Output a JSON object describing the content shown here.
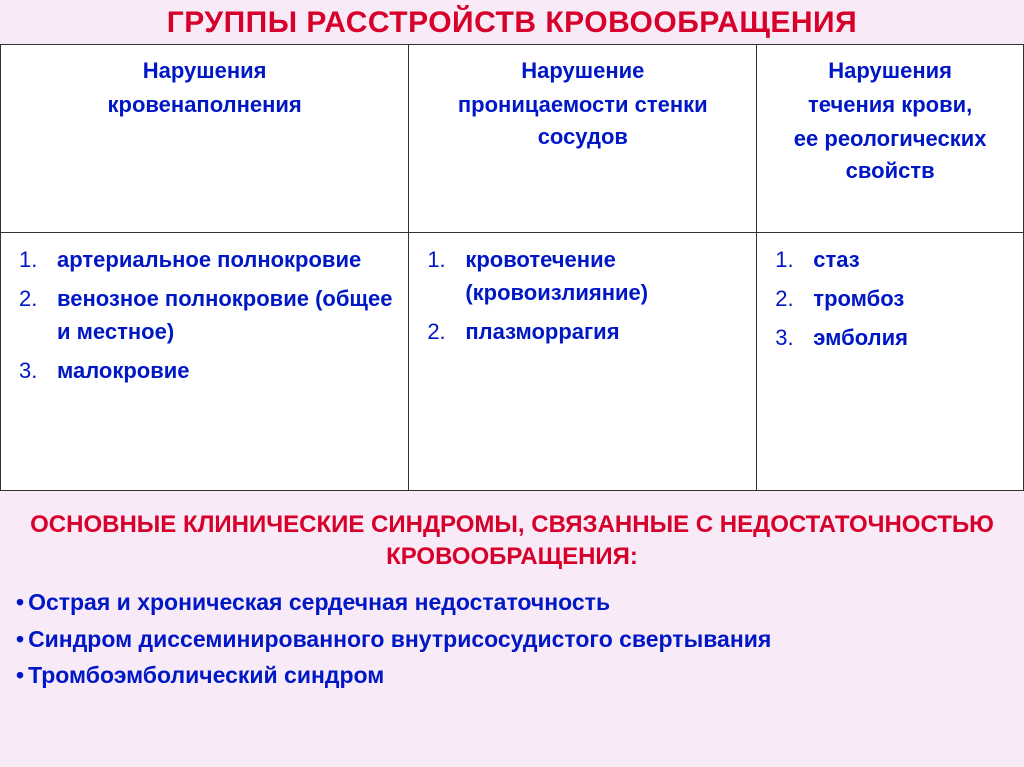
{
  "colors": {
    "title_red": "#d6002a",
    "body_blue": "#0017c6",
    "slide_bg": "#f9eaf7",
    "table_bg": "#ffffff",
    "border": "#333333"
  },
  "typography": {
    "title_fontsize": 30,
    "header_fontsize": 22,
    "body_fontsize": 22,
    "subtitle_fontsize": 24,
    "bullet_fontsize": 23,
    "font_family": "Arial"
  },
  "layout": {
    "columns": 3,
    "header_row_height": 188,
    "body_row_height": 258
  },
  "title": "ГРУППЫ РАССТРОЙСТВ КРОВООБРАЩЕНИЯ",
  "table": {
    "headers": [
      {
        "line1": "Нарушения",
        "line2": "кровенаполнения"
      },
      {
        "line1": "Нарушение",
        "line2": "проницаемости стенки сосудов"
      },
      {
        "line1": "Нарушения",
        "line2": "течения крови,",
        "line3": "ее реологических свойств"
      }
    ],
    "cells": [
      [
        "артериальное полнокровие",
        "венозное полнокровие (общее и местное)",
        "малокровие"
      ],
      [
        "кровотечение (кровоизлияние)",
        "плазморрагия"
      ],
      [
        "стаз",
        "тромбоз",
        "эмболия"
      ]
    ]
  },
  "subtitle": "ОСНОВНЫЕ КЛИНИЧЕСКИЕ СИНДРОМЫ, СВЯЗАННЫЕ С НЕДОСТАТОЧНОСТЬЮ КРОВООБРАЩЕНИЯ:",
  "syndromes": [
    "Острая  и хроническая  сердечная недостаточность",
    "Синдром диссеминированного внутрисосудистого свертывания",
    "Тромбоэмболический синдром"
  ]
}
